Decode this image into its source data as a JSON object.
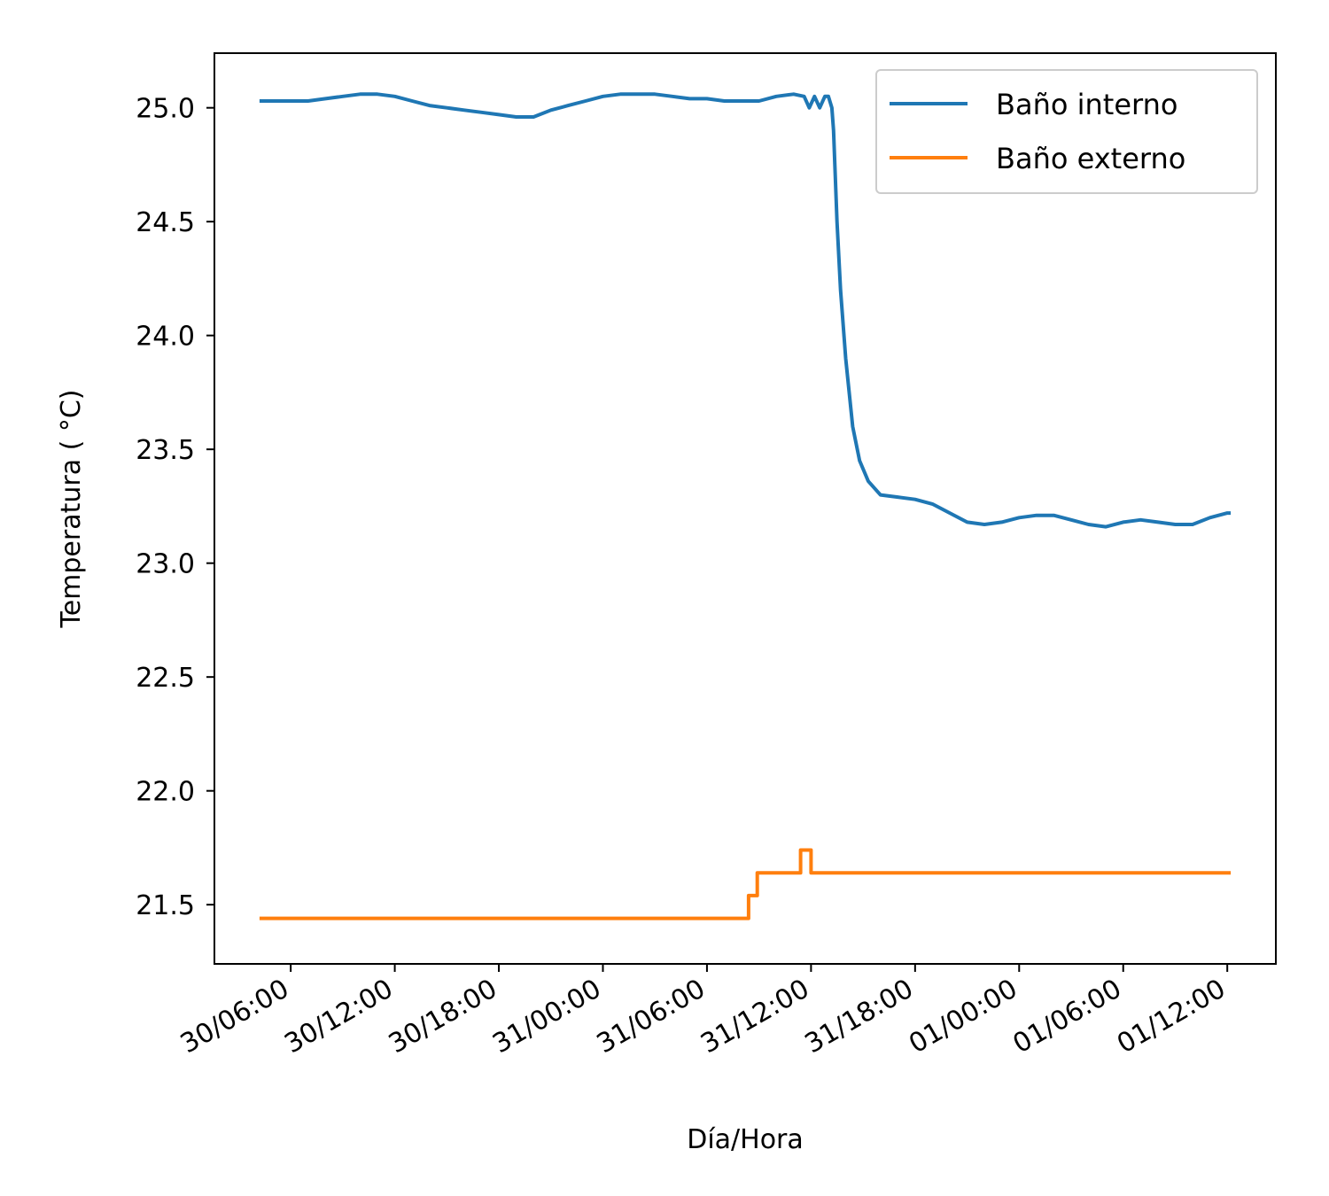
{
  "chart_data": {
    "type": "line",
    "title": "",
    "xlabel": "Día/Hora",
    "ylabel": "Temperatura ( °C)",
    "x_unit": "hours",
    "x_tick_labels": [
      "30/06:00",
      "30/12:00",
      "30/18:00",
      "31/00:00",
      "31/06:00",
      "31/12:00",
      "31/18:00",
      "01/00:00",
      "01/06:00",
      "01/12:00"
    ],
    "x_tick_hours": [
      0,
      6,
      12,
      18,
      24,
      30,
      36,
      42,
      48,
      54
    ],
    "xlim_hours": [
      -4.4,
      56.8
    ],
    "ylim": [
      21.24,
      25.24
    ],
    "y_ticks": [
      21.5,
      22.0,
      22.5,
      23.0,
      23.5,
      24.0,
      24.5,
      25.0
    ],
    "y_tick_labels": [
      "21.5",
      "22.0",
      "22.5",
      "23.0",
      "23.5",
      "24.0",
      "24.5",
      "25.0"
    ],
    "grid": false,
    "legend_position": "top-right",
    "series": [
      {
        "name": "Baño interno",
        "color": "#1f77b4",
        "points": [
          [
            -1.8,
            25.03
          ],
          [
            -1.0,
            25.03
          ],
          [
            0.0,
            25.03
          ],
          [
            1.0,
            25.03
          ],
          [
            2.0,
            25.04
          ],
          [
            3.0,
            25.05
          ],
          [
            4.0,
            25.06
          ],
          [
            5.0,
            25.06
          ],
          [
            6.0,
            25.05
          ],
          [
            7.0,
            25.03
          ],
          [
            8.0,
            25.01
          ],
          [
            9.0,
            25.0
          ],
          [
            10.0,
            24.99
          ],
          [
            11.0,
            24.98
          ],
          [
            12.0,
            24.97
          ],
          [
            13.0,
            24.96
          ],
          [
            14.0,
            24.96
          ],
          [
            15.0,
            24.99
          ],
          [
            16.0,
            25.01
          ],
          [
            17.0,
            25.03
          ],
          [
            18.0,
            25.05
          ],
          [
            19.0,
            25.06
          ],
          [
            20.0,
            25.06
          ],
          [
            21.0,
            25.06
          ],
          [
            22.0,
            25.05
          ],
          [
            23.0,
            25.04
          ],
          [
            24.0,
            25.04
          ],
          [
            25.0,
            25.03
          ],
          [
            26.0,
            25.03
          ],
          [
            27.0,
            25.03
          ],
          [
            28.0,
            25.05
          ],
          [
            29.0,
            25.06
          ],
          [
            29.6,
            25.05
          ],
          [
            29.9,
            25.0
          ],
          [
            30.2,
            25.05
          ],
          [
            30.5,
            25.0
          ],
          [
            30.8,
            25.05
          ],
          [
            31.0,
            25.05
          ],
          [
            31.2,
            25.0
          ],
          [
            31.3,
            24.9
          ],
          [
            31.5,
            24.5
          ],
          [
            31.7,
            24.2
          ],
          [
            32.0,
            23.9
          ],
          [
            32.4,
            23.6
          ],
          [
            32.8,
            23.45
          ],
          [
            33.3,
            23.36
          ],
          [
            34.0,
            23.3
          ],
          [
            35.0,
            23.29
          ],
          [
            36.0,
            23.28
          ],
          [
            37.0,
            23.26
          ],
          [
            38.0,
            23.22
          ],
          [
            39.0,
            23.18
          ],
          [
            40.0,
            23.17
          ],
          [
            41.0,
            23.18
          ],
          [
            42.0,
            23.2
          ],
          [
            43.0,
            23.21
          ],
          [
            44.0,
            23.21
          ],
          [
            45.0,
            23.19
          ],
          [
            46.0,
            23.17
          ],
          [
            47.0,
            23.16
          ],
          [
            48.0,
            23.18
          ],
          [
            49.0,
            23.19
          ],
          [
            50.0,
            23.18
          ],
          [
            51.0,
            23.17
          ],
          [
            52.0,
            23.17
          ],
          [
            53.0,
            23.2
          ],
          [
            54.0,
            23.22
          ],
          [
            54.2,
            23.22
          ]
        ]
      },
      {
        "name": "Baño externo",
        "color": "#ff7f0e",
        "points": [
          [
            -1.8,
            21.44
          ],
          [
            26.4,
            21.44
          ],
          [
            26.4,
            21.54
          ],
          [
            26.9,
            21.54
          ],
          [
            26.9,
            21.64
          ],
          [
            29.4,
            21.64
          ],
          [
            29.4,
            21.74
          ],
          [
            30.0,
            21.74
          ],
          [
            30.0,
            21.64
          ],
          [
            54.2,
            21.64
          ]
        ]
      }
    ]
  }
}
